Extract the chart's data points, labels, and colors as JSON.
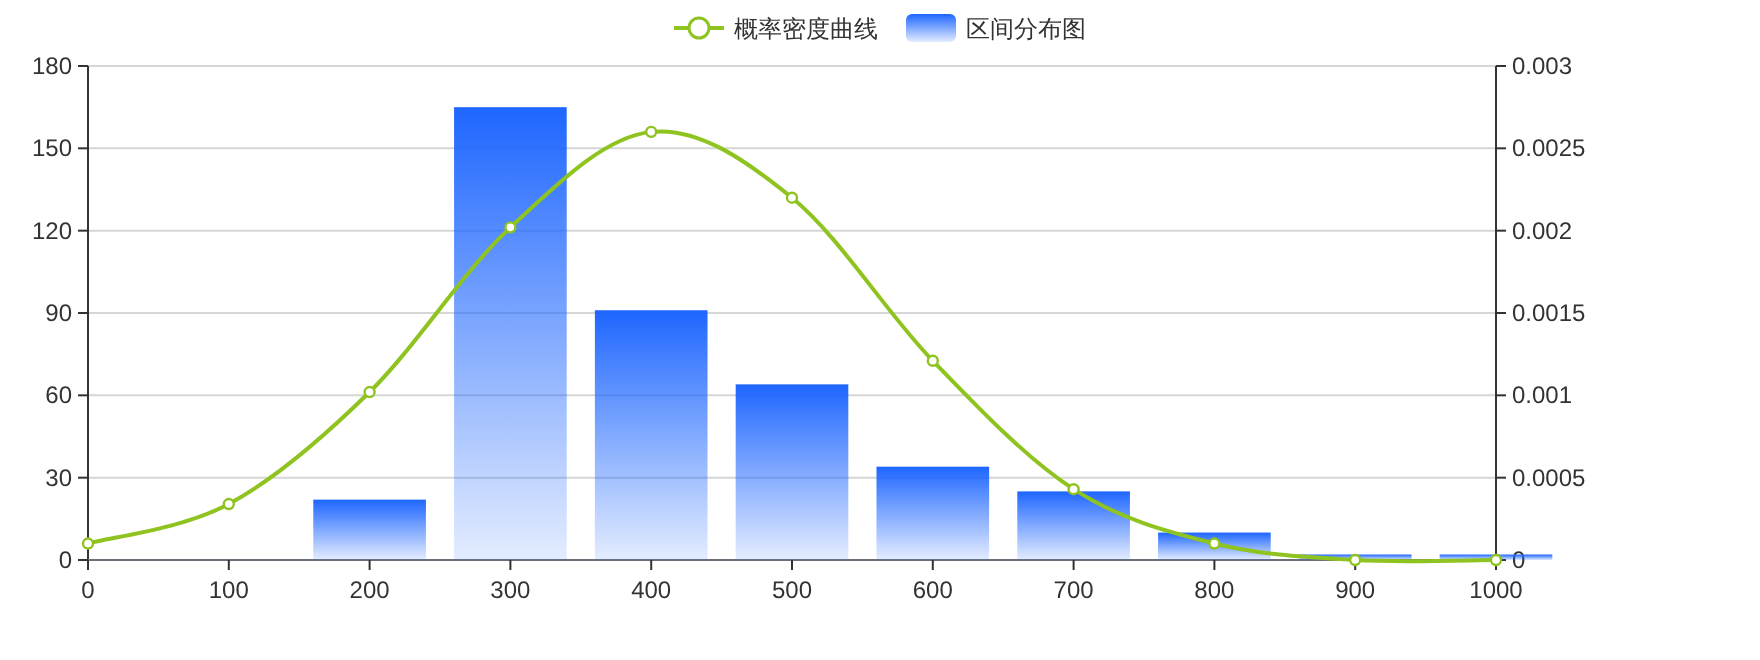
{
  "chart_data": {
    "type": "bar",
    "x": [
      200,
      300,
      400,
      500,
      600,
      700,
      800,
      900,
      1000
    ],
    "series": [
      {
        "name": "概率密度曲线",
        "type": "line",
        "axis": "y2",
        "color": "#8fc31f",
        "marker": "circle",
        "x": [
          0,
          100,
          200,
          300,
          400,
          500,
          600,
          700,
          800,
          900,
          1000
        ],
        "values": [
          0.0001,
          0.00034,
          0.00102,
          0.00202,
          0.0026,
          0.0022,
          0.00121,
          0.00043,
          0.0001,
          0,
          0
        ]
      },
      {
        "name": "区间分布图",
        "color": "#1e66ff",
        "values": [
          22,
          165,
          91,
          64,
          34,
          25,
          10,
          2,
          2
        ]
      }
    ],
    "xlim": [
      0,
      1000
    ],
    "xticks": [
      0,
      100,
      200,
      300,
      400,
      500,
      600,
      700,
      800,
      900,
      1000
    ],
    "ylim": [
      0,
      180
    ],
    "yticks": [
      0,
      30,
      60,
      90,
      120,
      150,
      180
    ],
    "y2lim": [
      0,
      0.003
    ],
    "y2ticks": [
      0,
      0.0005,
      0.001,
      0.0015,
      0.002,
      0.0025,
      0.003
    ],
    "grid": "y",
    "legend": "top"
  }
}
